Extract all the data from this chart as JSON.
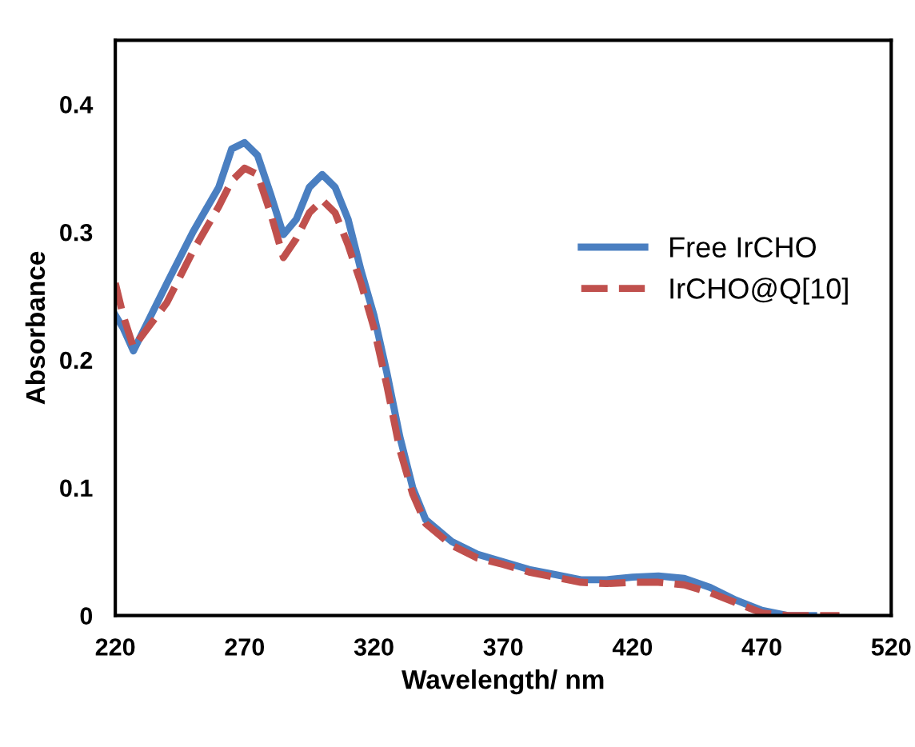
{
  "chart_data": {
    "type": "line",
    "xlabel": "Wavelength/ nm",
    "ylabel": "Absorbance",
    "xlim": [
      220,
      520
    ],
    "xticks": [
      220,
      270,
      320,
      370,
      420,
      470,
      520
    ],
    "ylim": [
      0,
      0.45
    ],
    "yticks": [
      0,
      0.1,
      0.2,
      0.3,
      0.4
    ],
    "grid": false,
    "legend": "right",
    "marker": "none",
    "series": [
      {
        "name": "Free IrCHO",
        "color": "#4a7fc1",
        "line_style": "solid",
        "x": [
          220,
          223,
          227,
          240,
          250,
          260,
          265,
          270,
          275,
          280,
          285,
          290,
          295,
          300,
          305,
          310,
          315,
          320,
          325,
          330,
          335,
          340,
          350,
          360,
          370,
          380,
          390,
          400,
          410,
          420,
          430,
          440,
          450,
          460,
          470,
          480,
          490
        ],
        "values": [
          0.235,
          0.225,
          0.207,
          0.26,
          0.3,
          0.335,
          0.365,
          0.37,
          0.36,
          0.33,
          0.298,
          0.31,
          0.335,
          0.345,
          0.335,
          0.31,
          0.27,
          0.235,
          0.19,
          0.14,
          0.1,
          0.075,
          0.058,
          0.048,
          0.042,
          0.036,
          0.032,
          0.028,
          0.028,
          0.03,
          0.031,
          0.029,
          0.022,
          0.012,
          0.004,
          0,
          0
        ]
      },
      {
        "name": "IrCHO@Q[10]",
        "color": "#c0504d",
        "line_style": "dashed",
        "x": [
          220,
          223,
          227,
          240,
          250,
          260,
          265,
          270,
          275,
          280,
          285,
          290,
          295,
          300,
          305,
          310,
          315,
          320,
          325,
          330,
          335,
          340,
          350,
          360,
          370,
          380,
          390,
          400,
          410,
          420,
          430,
          440,
          450,
          460,
          470,
          480,
          500
        ],
        "values": [
          0.26,
          0.235,
          0.21,
          0.245,
          0.285,
          0.32,
          0.34,
          0.35,
          0.345,
          0.315,
          0.28,
          0.295,
          0.315,
          0.325,
          0.315,
          0.29,
          0.26,
          0.225,
          0.18,
          0.13,
          0.095,
          0.072,
          0.055,
          0.045,
          0.04,
          0.034,
          0.03,
          0.026,
          0.025,
          0.026,
          0.026,
          0.024,
          0.018,
          0.01,
          0.002,
          0,
          0
        ]
      }
    ]
  }
}
